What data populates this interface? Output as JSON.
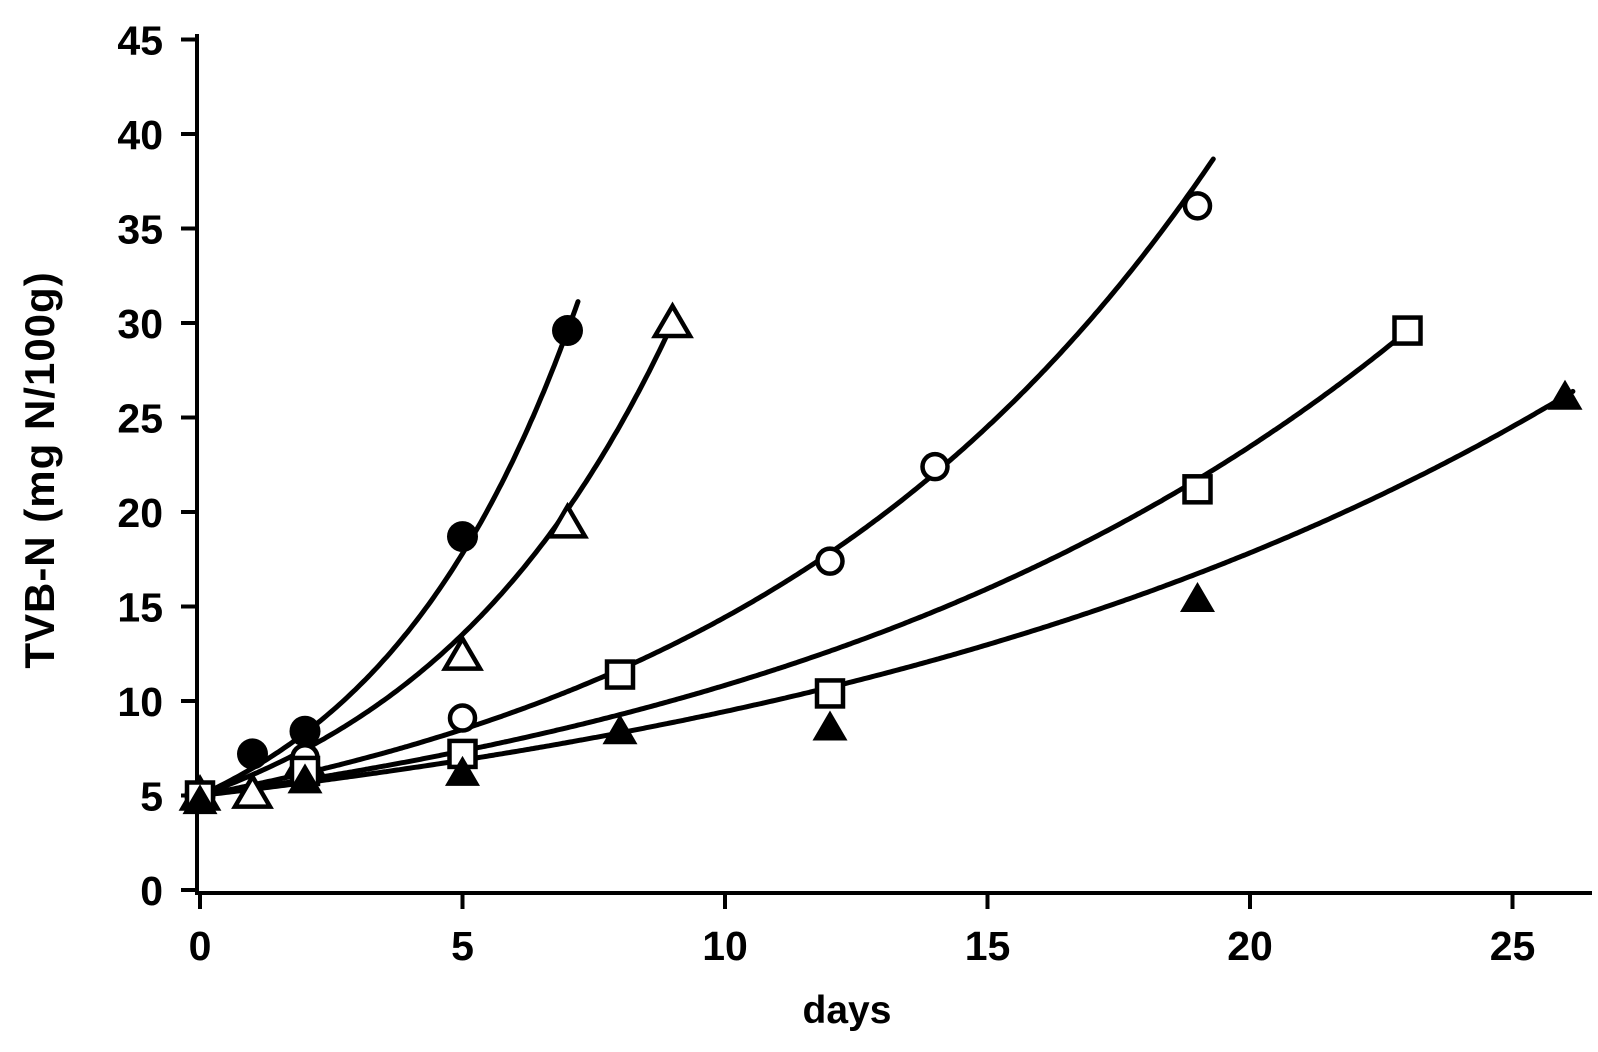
{
  "figure": {
    "background": "#ffffff",
    "ink_color": "#000000"
  },
  "chart_data": {
    "type": "scatter",
    "title": "",
    "xlabel": "days",
    "ylabel": "TVB-N (mg  N/100g)",
    "xlim": [
      0,
      26.6
    ],
    "ylim": [
      0,
      45
    ],
    "x_ticks": [
      0,
      5,
      10,
      15,
      20,
      25
    ],
    "y_ticks": [
      0,
      5,
      10,
      15,
      20,
      25,
      30,
      35,
      40,
      45
    ],
    "grid": false,
    "legend_position": "none",
    "series": [
      {
        "name": "filled-circle-series",
        "marker": "circle-filled",
        "points": [
          [
            0,
            5.0
          ],
          [
            1,
            7.2
          ],
          [
            2,
            8.4
          ],
          [
            5,
            18.7
          ],
          [
            7,
            29.6
          ]
        ],
        "trend": {
          "type": "exponential",
          "a": 5.0,
          "b": 0.254,
          "t_start": 0,
          "t_end": 7.2
        }
      },
      {
        "name": "open-triangle-series",
        "marker": "triangle-open",
        "points": [
          [
            0,
            5.0
          ],
          [
            1,
            5.1
          ],
          [
            2,
            6.8
          ],
          [
            5,
            12.4
          ],
          [
            7,
            19.4
          ],
          [
            9,
            30.0
          ]
        ],
        "trend": {
          "type": "exponential",
          "a": 5.0,
          "b": 0.199,
          "t_start": 0,
          "t_end": 9.05
        }
      },
      {
        "name": "open-circle-series",
        "marker": "circle-open",
        "points": [
          [
            0,
            5.0
          ],
          [
            2,
            7.0
          ],
          [
            5,
            9.1
          ],
          [
            12,
            17.4
          ],
          [
            14,
            22.4
          ],
          [
            19,
            36.2
          ]
        ],
        "trend": {
          "type": "exponential",
          "a": 5.0,
          "b": 0.106,
          "t_start": 0,
          "t_end": 19.3
        }
      },
      {
        "name": "open-square-series",
        "marker": "square-open",
        "points": [
          [
            0,
            5.0
          ],
          [
            2,
            6.3
          ],
          [
            5,
            7.2
          ],
          [
            8,
            11.4
          ],
          [
            12,
            10.4
          ],
          [
            19,
            21.2
          ],
          [
            23,
            29.6
          ]
        ],
        "trend": {
          "type": "exponential",
          "a": 5.0,
          "b": 0.0773,
          "t_start": 0,
          "t_end": 23.1
        }
      },
      {
        "name": "filled-triangle-series",
        "marker": "triangle-filled",
        "points": [
          [
            0,
            4.7
          ],
          [
            2,
            5.8
          ],
          [
            5,
            6.2
          ],
          [
            8,
            8.4
          ],
          [
            12,
            8.6
          ],
          [
            19,
            15.4
          ],
          [
            26,
            26.1
          ]
        ],
        "trend": {
          "type": "exponential",
          "a": 5.0,
          "b": 0.0636,
          "t_start": 0,
          "t_end": 26.15
        }
      }
    ]
  }
}
